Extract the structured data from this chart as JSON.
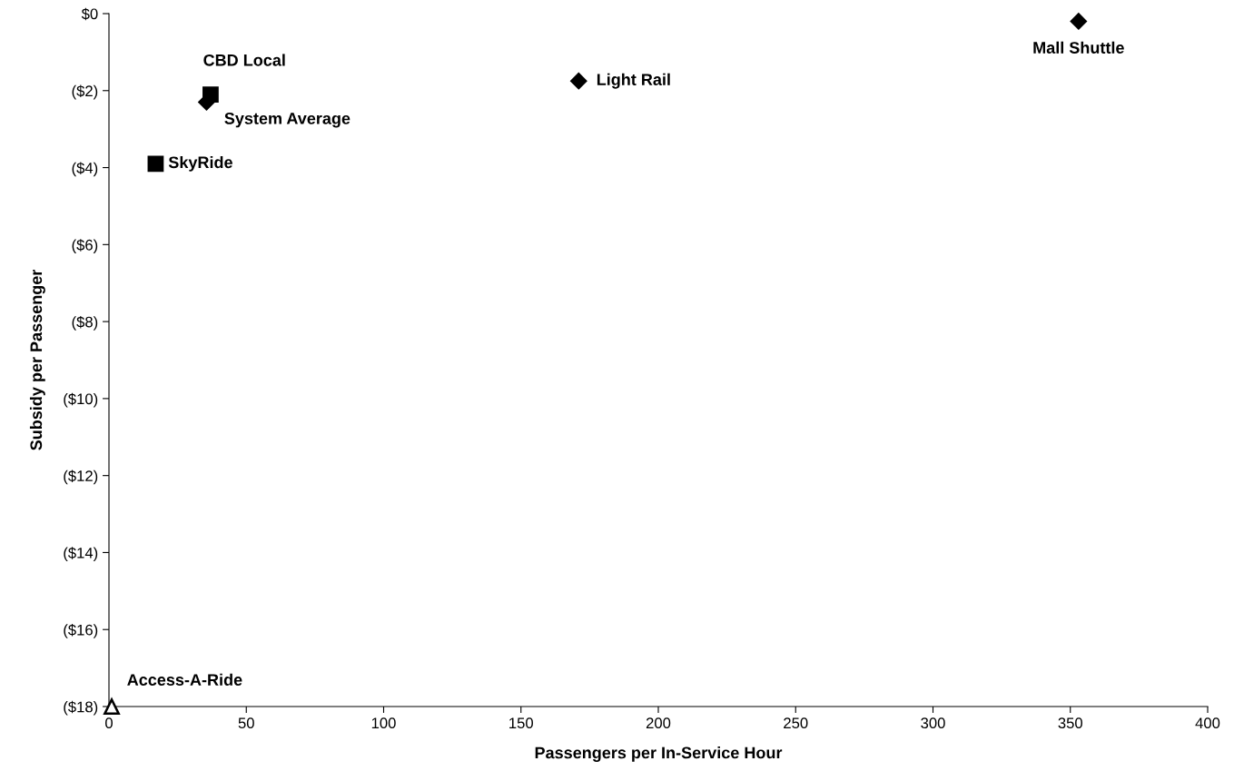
{
  "chart_data": {
    "type": "scatter",
    "xlabel": "Passengers per In-Service Hour",
    "ylabel": "Subsidy per Passenger",
    "xlim": [
      0,
      400
    ],
    "xticks": [
      0,
      50,
      100,
      150,
      200,
      250,
      300,
      350,
      400
    ],
    "ylim": [
      -18,
      0
    ],
    "yticks": [
      {
        "value": 0,
        "label": "$0"
      },
      {
        "value": -2,
        "label": "($2)"
      },
      {
        "value": -4,
        "label": "($4)"
      },
      {
        "value": -6,
        "label": "($6)"
      },
      {
        "value": -8,
        "label": "($8)"
      },
      {
        "value": -10,
        "label": "($10)"
      },
      {
        "value": -12,
        "label": "($12)"
      },
      {
        "value": -14,
        "label": "($14)"
      },
      {
        "value": -16,
        "label": "($16)"
      },
      {
        "value": -18,
        "label": "($18)"
      }
    ],
    "grid": false,
    "legend": false,
    "series": [
      {
        "name": "Mall Shuttle",
        "color": "#000000",
        "marker": "diamond",
        "x": [
          353
        ],
        "values": [
          -0.2
        ]
      },
      {
        "name": "Light Rail",
        "color": "#000000",
        "marker": "diamond",
        "x": [
          171
        ],
        "values": [
          -1.75
        ]
      },
      {
        "name": "CBD Local",
        "color": "#000000",
        "marker": "square",
        "x": [
          37
        ],
        "values": [
          -2.1
        ]
      },
      {
        "name": "System Average",
        "color": "#000000",
        "marker": "diamond",
        "x": [
          35.5
        ],
        "values": [
          -2.3
        ]
      },
      {
        "name": "SkyRide",
        "color": "#000000",
        "marker": "square",
        "x": [
          17
        ],
        "values": [
          -3.9
        ]
      },
      {
        "name": "Access-A-Ride",
        "color": "#ffffff",
        "marker": "triangle",
        "x": [
          1
        ],
        "values": [
          -18
        ]
      }
    ]
  }
}
